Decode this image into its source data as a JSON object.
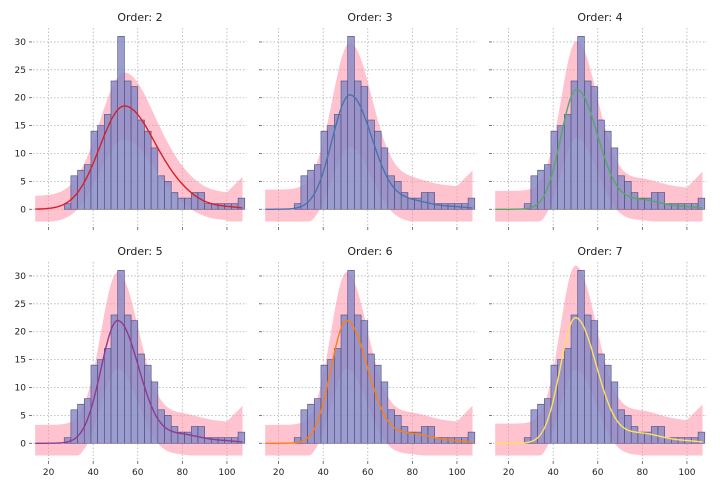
{
  "chart_data": {
    "type": "bar",
    "description_of_layout": "",
    "panels": [
      {
        "title": "Order: 2",
        "fit_color": "#d6202a"
      },
      {
        "title": "Order: 3",
        "fit_color": "#4c72b0"
      },
      {
        "title": "Order: 4",
        "fit_color": "#55a868"
      },
      {
        "title": "Order: 5",
        "fit_color": "#8e3a93"
      },
      {
        "title": "Order: 6",
        "fit_color": "#ff7f0e"
      },
      {
        "title": "Order: 7",
        "fit_color": "#ffe05a"
      }
    ],
    "histogram": {
      "bin_width": 3,
      "bins_start": [
        27,
        30,
        33,
        36,
        39,
        42,
        45,
        48,
        51,
        54,
        57,
        60,
        63,
        66,
        69,
        72,
        75,
        78,
        81,
        84,
        87,
        90,
        93,
        96,
        99,
        102,
        105
      ],
      "counts": [
        1,
        6,
        7,
        8,
        14,
        15,
        17,
        23,
        31,
        23,
        22,
        16,
        14,
        11,
        6,
        5,
        3,
        2,
        2,
        3,
        3,
        1,
        1,
        1,
        1,
        1,
        2
      ],
      "bar_color": "#8b8cc7"
    },
    "x_ticks": [
      20,
      40,
      60,
      80,
      100
    ],
    "y_ticks": [
      0,
      5,
      10,
      15,
      20,
      25,
      30
    ],
    "xlim": [
      13,
      109
    ],
    "ylim": [
      -3,
      32.5
    ],
    "band_color": "#ff8fa8",
    "grid": true
  }
}
